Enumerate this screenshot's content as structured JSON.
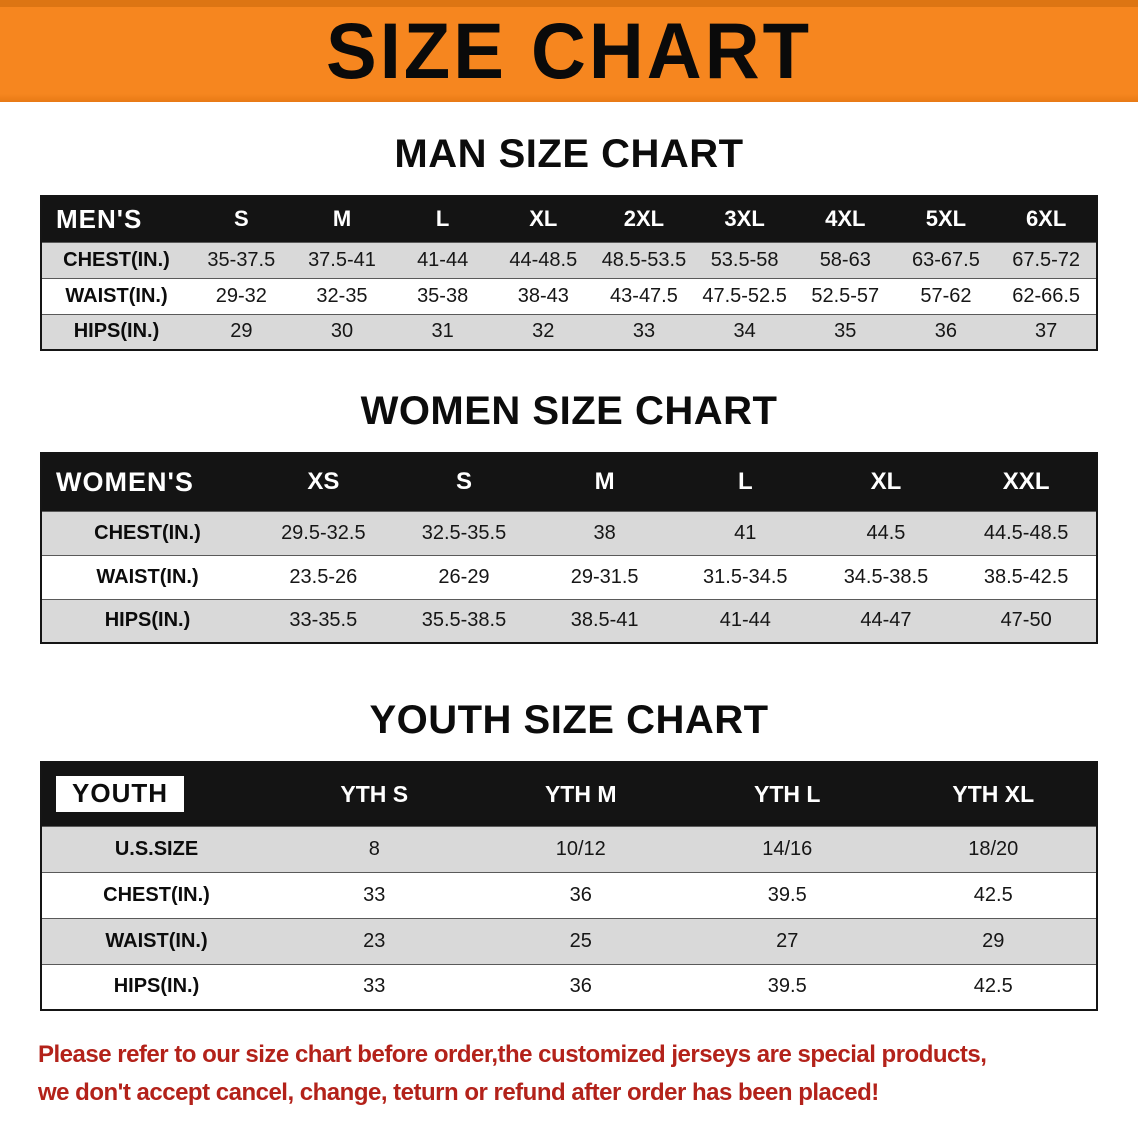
{
  "banner": {
    "title": "SIZE CHART"
  },
  "colors": {
    "banner_orange": "#f6861f",
    "header_black": "#141414",
    "row_shade_gray": "#d9d9d9",
    "disclaimer_red": "#b3221a"
  },
  "sections": [
    {
      "heading": "MAN SIZE CHART",
      "table": {
        "header_label": "MEN'S",
        "columns": [
          "S",
          "M",
          "L",
          "XL",
          "2XL",
          "3XL",
          "4XL",
          "5XL",
          "6XL"
        ],
        "rows": [
          {
            "label": "CHEST(IN.)",
            "values": [
              "35-37.5",
              "37.5-41",
              "41-44",
              "44-48.5",
              "48.5-53.5",
              "53.5-58",
              "58-63",
              "63-67.5",
              "67.5-72"
            ]
          },
          {
            "label": "WAIST(IN.)",
            "values": [
              "29-32",
              "32-35",
              "35-38",
              "38-43",
              "43-47.5",
              "47.5-52.5",
              "52.5-57",
              "57-62",
              "62-66.5"
            ]
          },
          {
            "label": "HIPS(IN.)",
            "values": [
              "29",
              "30",
              "31",
              "32",
              "33",
              "34",
              "35",
              "36",
              "37"
            ]
          }
        ]
      }
    },
    {
      "heading": "WOMEN SIZE CHART",
      "table": {
        "header_label": "WOMEN'S",
        "columns": [
          "XS",
          "S",
          "M",
          "L",
          "XL",
          "XXL"
        ],
        "rows": [
          {
            "label": "CHEST(IN.)",
            "values": [
              "29.5-32.5",
              "32.5-35.5",
              "38",
              "41",
              "44.5",
              "44.5-48.5"
            ]
          },
          {
            "label": "WAIST(IN.)",
            "values": [
              "23.5-26",
              "26-29",
              "29-31.5",
              "31.5-34.5",
              "34.5-38.5",
              "38.5-42.5"
            ]
          },
          {
            "label": "HIPS(IN.)",
            "values": [
              "33-35.5",
              "35.5-38.5",
              "38.5-41",
              "41-44",
              "44-47",
              "47-50"
            ]
          }
        ]
      }
    },
    {
      "heading": "YOUTH SIZE CHART",
      "table": {
        "header_label": "YOUTH",
        "columns": [
          "YTH S",
          "YTH M",
          "YTH L",
          "YTH XL"
        ],
        "rows": [
          {
            "label": "U.S.SIZE",
            "values": [
              "8",
              "10/12",
              "14/16",
              "18/20"
            ]
          },
          {
            "label": "CHEST(IN.)",
            "values": [
              "33",
              "36",
              "39.5",
              "42.5"
            ]
          },
          {
            "label": "WAIST(IN.)",
            "values": [
              "23",
              "25",
              "27",
              "29"
            ]
          },
          {
            "label": "HIPS(IN.)",
            "values": [
              "33",
              "36",
              "39.5",
              "42.5"
            ]
          }
        ]
      }
    }
  ],
  "footer": {
    "line1": "Please refer to our size chart before order,the customized jerseys are special products,",
    "line2": "we don't accept cancel, change, teturn or refund after order has been placed!"
  }
}
